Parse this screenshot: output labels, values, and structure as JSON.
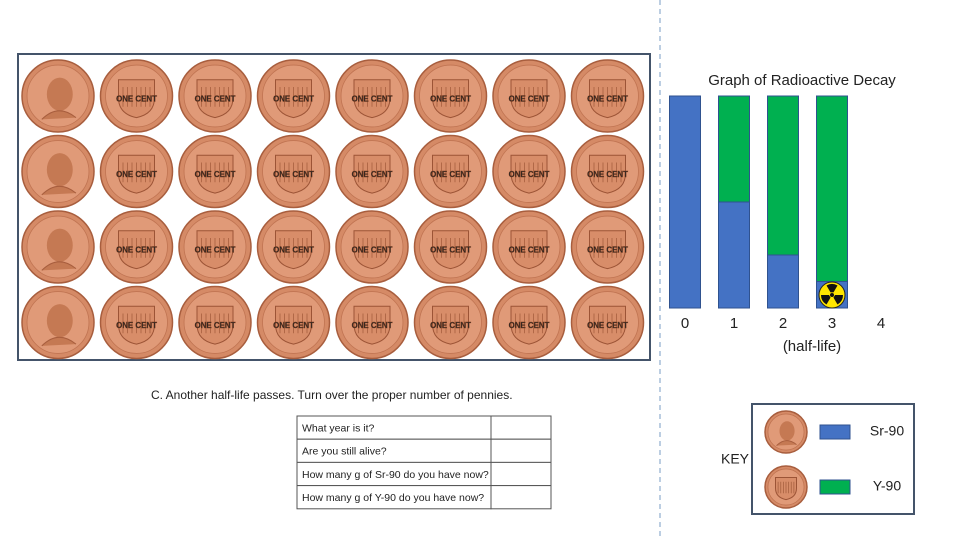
{
  "chart_data": {
    "type": "stacked-bar",
    "title": "Graph of Radioactive Decay",
    "x_label": "(half-life)",
    "categories": [
      "0",
      "1",
      "2",
      "3",
      "4"
    ],
    "series": [
      {
        "name": "Sr-90",
        "color": "#4472c4",
        "values": [
          100,
          50,
          25,
          12.5,
          null
        ]
      },
      {
        "name": "Y-90",
        "color": "#00b050",
        "values": [
          0,
          50,
          75,
          87.5,
          null
        ]
      }
    ],
    "ylim": [
      0,
      100
    ],
    "legend_title": "KEY"
  },
  "coins": {
    "label": "ONE CENT",
    "rows": 4,
    "columns": 8
  },
  "instruction": "C.  Another half-life passes.  Turn over the proper number of pennies.",
  "table": {
    "rows": [
      [
        "What year is it?"
      ],
      [
        "Are you still alive?"
      ],
      [
        "How many g of Sr-90 do you have now?"
      ],
      [
        "How many g of Y-90 do you have now?"
      ]
    ]
  }
}
